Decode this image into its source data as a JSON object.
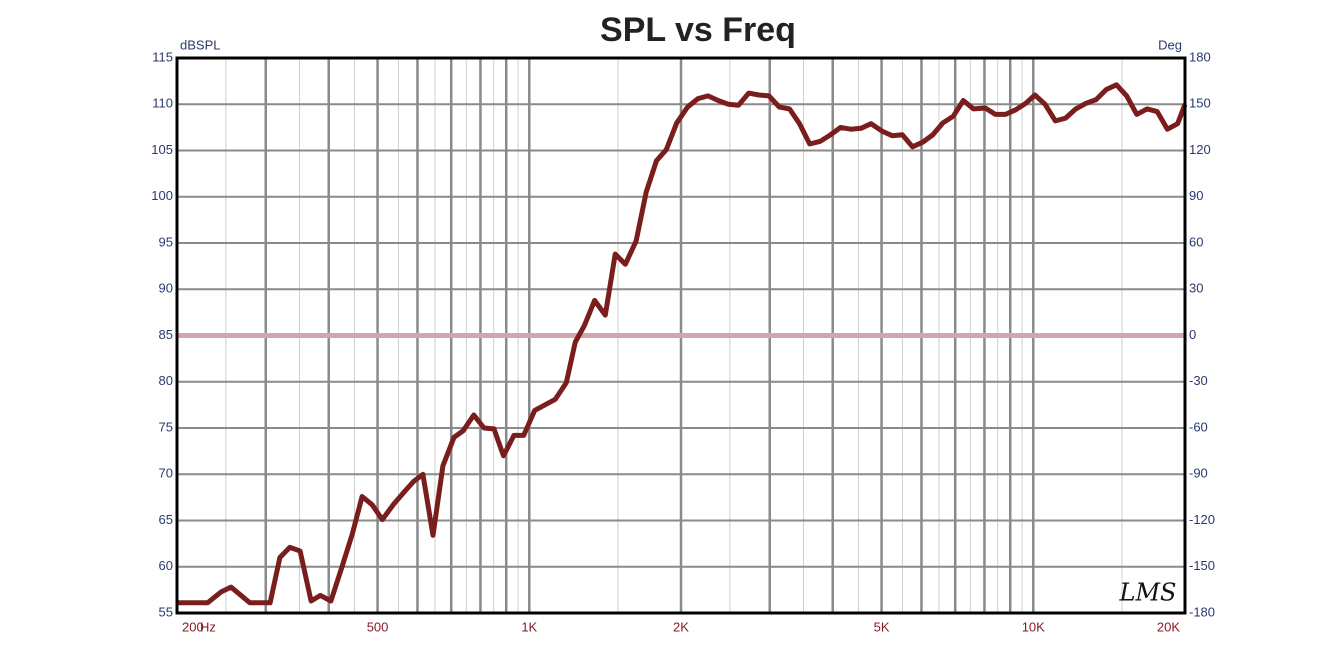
{
  "chart_data": {
    "type": "line",
    "title": "SPL vs Freq",
    "ylabel": "dBSPL",
    "y2label": "Deg",
    "xlabel": "Hz",
    "logo": "LMS",
    "xscale": "log",
    "xlim": [
      200,
      20000
    ],
    "xticks": [
      200,
      500,
      {
        "value": 1000,
        "label": "1K"
      },
      {
        "value": 2000,
        "label": "2K"
      },
      {
        "value": 5000,
        "label": "5K"
      },
      {
        "value": 10000,
        "label": "10K"
      },
      {
        "value": 20000,
        "label": "20K"
      }
    ],
    "xgrid": [
      300,
      400,
      500,
      600,
      700,
      800,
      900,
      1000,
      2000,
      3000,
      4000,
      5000,
      6000,
      7000,
      8000,
      9000,
      10000
    ],
    "xgrid_minor": [
      250,
      350,
      450,
      550,
      650,
      750,
      850,
      950,
      1500,
      2500,
      3500,
      4500,
      5500,
      6500,
      7500,
      8500,
      9500,
      15000
    ],
    "ylim": [
      55,
      115
    ],
    "yticks": [
      55,
      60,
      65,
      70,
      75,
      80,
      85,
      90,
      95,
      100,
      105,
      110,
      115
    ],
    "y2lim": [
      -180,
      180
    ],
    "y2ticks": [
      -180,
      -150,
      -120,
      -90,
      -60,
      -30,
      0,
      30,
      60,
      90,
      120,
      150,
      180
    ],
    "grid": true,
    "series": [
      {
        "color": "#7a1d1d",
        "x": [
          200,
          230,
          245,
          256,
          279,
          306,
          320,
          335,
          351,
          369,
          385,
          404,
          425,
          446,
          466,
          488,
          511,
          537,
          563,
          589,
          615,
          644,
          674,
          709,
          739,
          776,
          813,
          851,
          889,
          932,
          975,
          1025,
          1126,
          1184,
          1234,
          1287,
          1348,
          1415,
          1481,
          1551,
          1629,
          1706,
          1788,
          1870,
          1962,
          2061,
          2161,
          2263,
          2371,
          2485,
          2601,
          2725,
          2855,
          2990,
          3134,
          3283,
          3437,
          3601,
          3780,
          3959,
          4147,
          4345,
          4551,
          4767,
          5011,
          5250,
          5499,
          5760,
          6034,
          6320,
          6621,
          6936,
          7265,
          7610,
          8028,
          8409,
          8809,
          9228,
          9666,
          10075,
          10554,
          11061,
          11593,
          12144,
          12721,
          13327,
          13961,
          14626,
          15321,
          16048,
          16817,
          17617,
          18454,
          19332,
          20000
        ],
        "values": [
          56.1,
          56.1,
          57.3,
          57.8,
          56.1,
          56.1,
          61,
          62.1,
          61.7,
          56.3,
          56.9,
          56.3,
          60,
          63.6,
          67.6,
          66.7,
          65.1,
          66.7,
          68,
          69.2,
          70,
          63.4,
          70.9,
          74,
          74.7,
          76.4,
          75,
          74.9,
          72,
          74.2,
          74.2,
          76.9,
          78.1,
          79.9,
          84.3,
          86.1,
          88.8,
          87.2,
          93.8,
          92.7,
          95.2,
          100.5,
          103.9,
          105.1,
          108,
          109.7,
          110.6,
          110.9,
          110.4,
          110,
          109.9,
          111.2,
          111,
          110.9,
          109.7,
          109.5,
          107.9,
          105.7,
          106,
          106.7,
          107.5,
          107.3,
          107.4,
          107.9,
          107.1,
          106.6,
          106.7,
          105.4,
          105.9,
          106.7,
          108,
          108.7,
          110.4,
          109.5,
          109.6,
          108.9,
          108.9,
          109.4,
          110.1,
          111,
          110,
          108.2,
          108.5,
          109.5,
          110.1,
          110.5,
          111.6,
          112.1,
          110.9,
          108.9,
          109.5,
          109.2,
          107.3,
          107.9,
          110
        ]
      },
      {
        "color": "#d4a6a9",
        "axis": "y2",
        "x": [
          200,
          20000
        ],
        "values": [
          0,
          0
        ]
      }
    ]
  }
}
